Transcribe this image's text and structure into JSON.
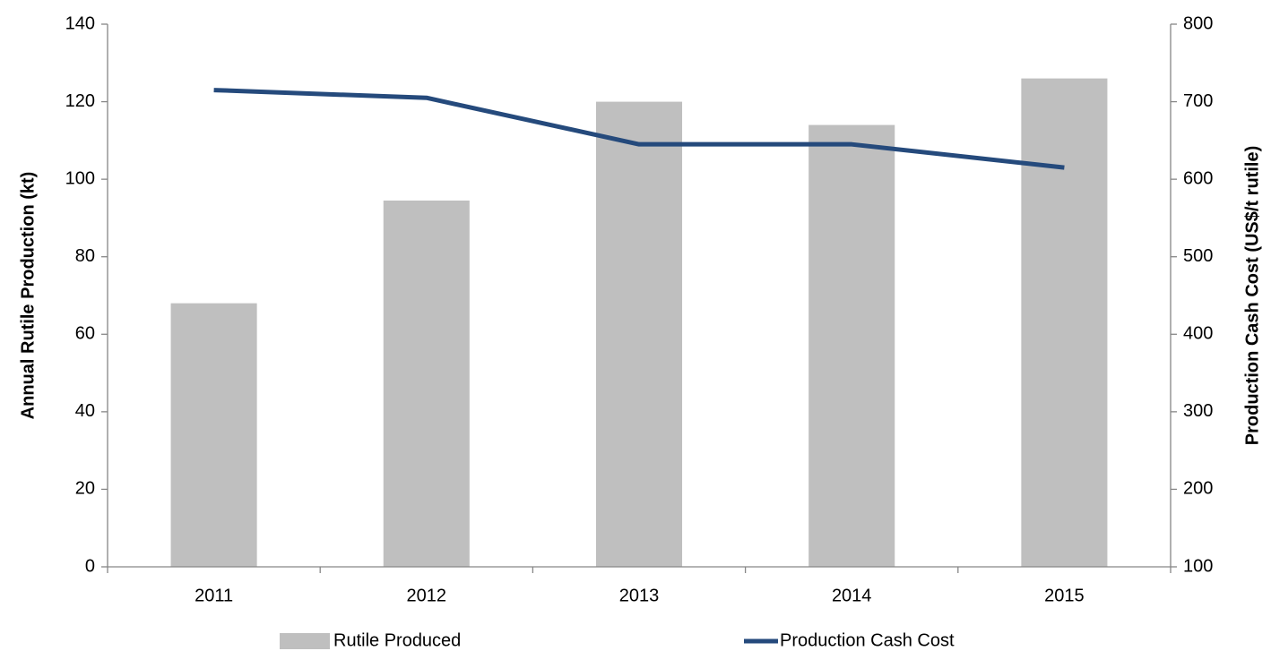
{
  "chart_data": {
    "type": "bar",
    "categories": [
      "2011",
      "2012",
      "2013",
      "2014",
      "2015"
    ],
    "series": [
      {
        "name": "Rutile Produced",
        "type": "bar",
        "color": "#bfbfbf",
        "axis": "y",
        "values": [
          68,
          94.5,
          120,
          114,
          126
        ]
      },
      {
        "name": "Production Cash Cost",
        "type": "line",
        "color": "#254a7c",
        "axis": "y2",
        "values": [
          715,
          705,
          645,
          645,
          615
        ]
      }
    ],
    "ylabel": "Annual Rutile Production (kt)",
    "y2label": "Production Cash Cost (US$/t rutile)",
    "ylim": [
      0,
      140
    ],
    "yticks": [
      0,
      20,
      40,
      60,
      80,
      100,
      120,
      140
    ],
    "y2lim": [
      100,
      800
    ],
    "y2ticks": [
      100,
      200,
      300,
      400,
      500,
      600,
      700,
      800
    ],
    "grid": false,
    "legend": "bottom"
  }
}
